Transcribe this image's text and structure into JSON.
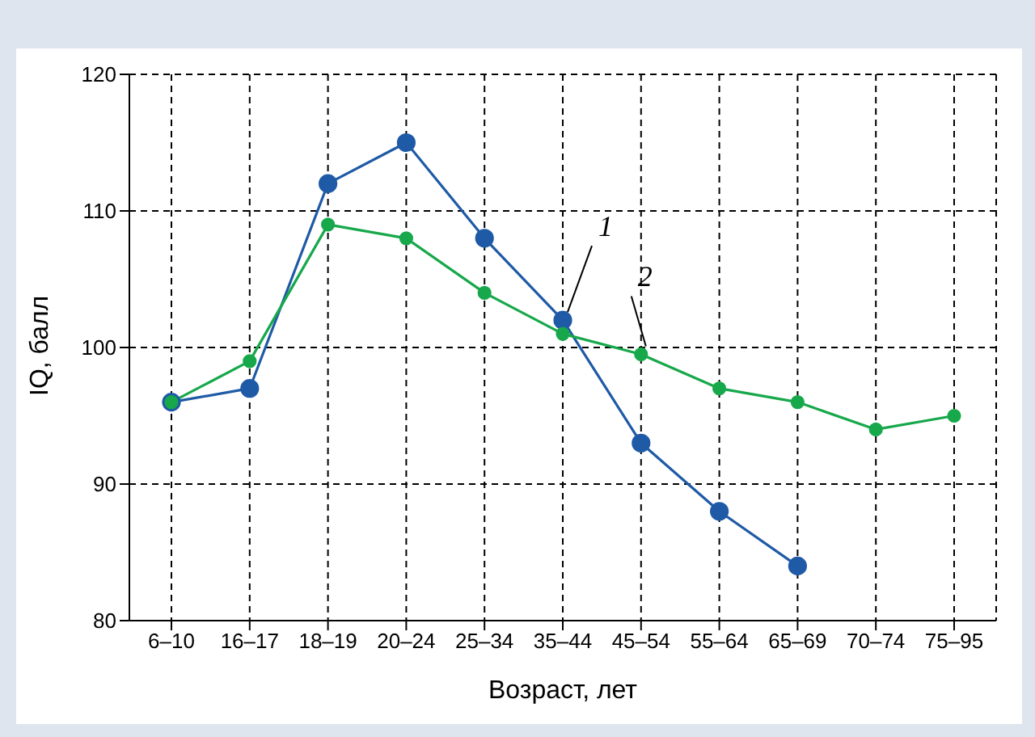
{
  "chart_data": {
    "type": "line",
    "xlabel": "Возраст, лет",
    "ylabel": "IQ, балл",
    "categories": [
      "6–10",
      "16–17",
      "18–19",
      "20–24",
      "25–34",
      "35–44",
      "45–54",
      "55–64",
      "65–69",
      "70–74",
      "75–95"
    ],
    "series": [
      {
        "name": "1",
        "color": "#1f5aa6",
        "values": [
          96,
          97,
          112,
          115,
          108,
          102,
          93,
          88,
          84,
          null,
          null
        ]
      },
      {
        "name": "2",
        "color": "#17a84b",
        "values": [
          96,
          99,
          109,
          108,
          104,
          101,
          99.5,
          97,
          96,
          94,
          95
        ]
      }
    ],
    "ylim": [
      80,
      120
    ],
    "yticks": [
      80,
      90,
      100,
      110,
      120
    ],
    "grid": true,
    "marker": "circle",
    "line_style": "solid",
    "legend": false
  }
}
